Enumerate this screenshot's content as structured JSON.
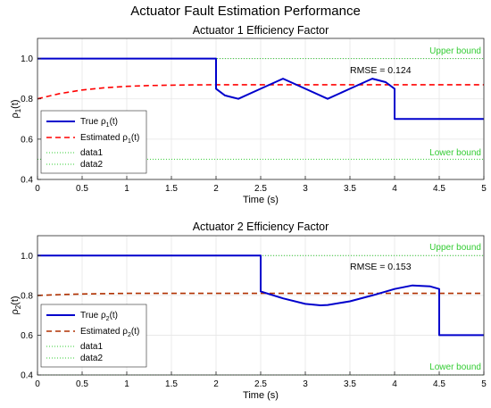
{
  "figure_title": "Actuator Fault Estimation Performance",
  "colors": {
    "true": "#0000cc",
    "estimated1": "#ff0000",
    "estimated2": "#b03000",
    "bounds": "#33cc33",
    "grid": "#e6e6e6"
  },
  "chart_data": [
    {
      "type": "line",
      "title": "Actuator 1 Efficiency Factor",
      "xlabel": "Time (s)",
      "ylabel": {
        "base": "ρ",
        "sub": "1",
        "rest": "(t)"
      },
      "xlim": [
        0,
        5
      ],
      "ylim": [
        0.4,
        1.1
      ],
      "xticks": [
        0,
        0.5,
        1,
        1.5,
        2,
        2.5,
        3,
        3.5,
        4,
        4.5,
        5
      ],
      "yticks": [
        0.4,
        0.6,
        0.8,
        1.0
      ],
      "xtick_labels": [
        "0",
        "0.5",
        "1",
        "1.5",
        "2",
        "2.5",
        "3",
        "3.5",
        "4",
        "4.5",
        "5"
      ],
      "ytick_labels": [
        "0.4",
        "0.6",
        "0.8",
        "1.0"
      ],
      "grid": true,
      "legend_position": "bottom-left",
      "annotation": "RMSE = 0.124",
      "upper_bound": {
        "value": 1.0,
        "label": "Upper bound"
      },
      "lower_bound": {
        "value": 0.5,
        "label": "Lower bound"
      },
      "series": [
        {
          "legend": {
            "base": "True ρ",
            "sub": "1",
            "rest": "(t)"
          },
          "style": "solid",
          "x": [
            0,
            2,
            2,
            2.1,
            2.25,
            2.5,
            2.75,
            3.0,
            3.25,
            3.5,
            3.75,
            3.9,
            4.0,
            4.0,
            5.0
          ],
          "y": [
            1.0,
            1.0,
            0.85,
            0.817,
            0.8,
            0.85,
            0.9,
            0.85,
            0.8,
            0.85,
            0.9,
            0.883,
            0.85,
            0.7,
            0.7
          ]
        },
        {
          "legend": {
            "base": "Estimated ρ",
            "sub": "1",
            "rest": "(t)"
          },
          "style": "dashed",
          "x": [
            0,
            0.25,
            0.5,
            0.75,
            1.0,
            1.25,
            1.5,
            1.75,
            2.0,
            2.5,
            3.0,
            4.0,
            5.0
          ],
          "y": [
            0.8,
            0.826,
            0.844,
            0.855,
            0.862,
            0.866,
            0.868,
            0.869,
            0.87,
            0.87,
            0.87,
            0.87,
            0.87
          ]
        },
        {
          "legend": "data1",
          "style": "dotted",
          "x": [
            0,
            5
          ],
          "y": [
            1.0,
            1.0
          ]
        },
        {
          "legend": "data2",
          "style": "dotted",
          "x": [
            0,
            5
          ],
          "y": [
            0.5,
            0.5
          ]
        }
      ]
    },
    {
      "type": "line",
      "title": "Actuator 2 Efficiency Factor",
      "xlabel": "Time (s)",
      "ylabel": {
        "base": "ρ",
        "sub": "2",
        "rest": "(t)"
      },
      "xlim": [
        0,
        5
      ],
      "ylim": [
        0.4,
        1.1
      ],
      "xticks": [
        0,
        0.5,
        1,
        1.5,
        2,
        2.5,
        3,
        3.5,
        4,
        4.5,
        5
      ],
      "yticks": [
        0.4,
        0.6,
        0.8,
        1.0
      ],
      "xtick_labels": [
        "0",
        "0.5",
        "1",
        "1.5",
        "2",
        "2.5",
        "3",
        "3.5",
        "4",
        "4.5",
        "5"
      ],
      "ytick_labels": [
        "0.4",
        "0.6",
        "0.8",
        "1.0"
      ],
      "grid": true,
      "legend_position": "bottom-left",
      "annotation": "RMSE = 0.153",
      "upper_bound": {
        "value": 1.0,
        "label": "Upper bound"
      },
      "lower_bound": {
        "value": 0.4,
        "label": "Lower bound"
      },
      "series": [
        {
          "legend": {
            "base": "True ρ",
            "sub": "2",
            "rest": "(t)"
          },
          "style": "solid",
          "x": [
            0,
            2.5,
            2.5,
            2.75,
            3.0,
            3.17,
            3.25,
            3.5,
            3.75,
            4.0,
            4.2,
            4.4,
            4.5,
            4.5,
            5.0
          ],
          "y": [
            1.0,
            1.0,
            0.82,
            0.785,
            0.757,
            0.75,
            0.752,
            0.77,
            0.8,
            0.832,
            0.85,
            0.845,
            0.832,
            0.6,
            0.6
          ]
        },
        {
          "legend": {
            "base": "Estimated ρ",
            "sub": "2",
            "rest": "(t)"
          },
          "style": "dashed",
          "x": [
            0,
            0.25,
            0.5,
            0.75,
            1.0,
            1.5,
            2.0,
            3.0,
            4.0,
            5.0
          ],
          "y": [
            0.8,
            0.804,
            0.807,
            0.809,
            0.81,
            0.81,
            0.81,
            0.81,
            0.81,
            0.81
          ]
        },
        {
          "legend": "data1",
          "style": "dotted",
          "x": [
            0,
            5
          ],
          "y": [
            1.0,
            1.0
          ]
        },
        {
          "legend": "data2",
          "style": "dotted",
          "x": [
            0,
            5
          ],
          "y": [
            0.4,
            0.4
          ]
        }
      ]
    }
  ]
}
